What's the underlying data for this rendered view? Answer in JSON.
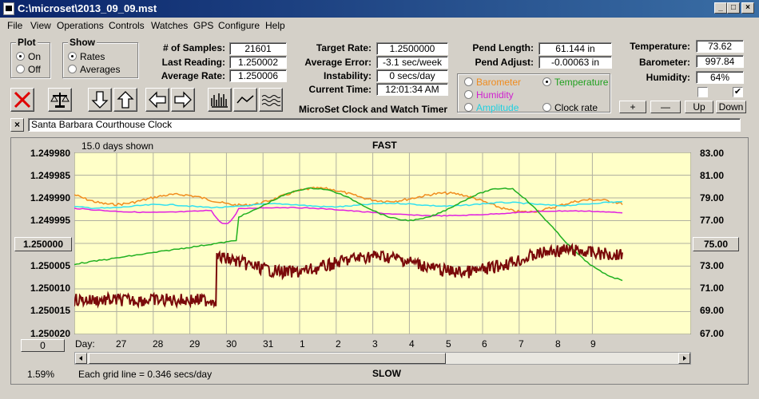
{
  "window": {
    "title": "C:\\microset\\2013_09_09.mst",
    "btn_min": "_",
    "btn_max": "□",
    "btn_close": "×"
  },
  "menu": [
    "File",
    "View",
    "Operations",
    "Controls",
    "Watches",
    "GPS",
    "Configure",
    "Help"
  ],
  "plot_group": {
    "title": "Plot",
    "on": "On",
    "off": "Off"
  },
  "show_group": {
    "title": "Show",
    "rates": "Rates",
    "averages": "Averages"
  },
  "stats": {
    "samples_label": "# of Samples:",
    "samples": "21601",
    "last_label": "Last Reading:",
    "last": "1.250002",
    "avg_label": "Average Rate:",
    "avg": "1.250006",
    "target_label": "Target Rate:",
    "target": "1.2500000",
    "error_label": "Average Error:",
    "error": "-3.1 sec/week",
    "instab_label": "Instability:",
    "instab": "0 secs/day",
    "time_label": "Current Time:",
    "time": "12:01:34 AM",
    "pend_len_label": "Pend Length:",
    "pend_len": "61.144 in",
    "pend_adj_label": "Pend Adjust:",
    "pend_adj": "-0.00063 in",
    "temp_label": "Temperature:",
    "temp": "73.62",
    "baro_label": "Barometer:",
    "baro": "997.84",
    "hum_label": "Humidity:",
    "hum": "64%"
  },
  "sensor_options": {
    "barometer": "Barometer",
    "temperature": "Temperature",
    "humidity": "Humidity",
    "amplitude": "Amplitude",
    "clock_rate": "Clock rate"
  },
  "small_buttons": {
    "plus": "+",
    "minus": "—",
    "up": "Up",
    "down": "Down"
  },
  "app_title": "MicroSet Clock and Watch Timer",
  "clock_name": "Santa Barbara Courthouse Clock",
  "clear_btn": "×",
  "colors": {
    "barometer": "#f08c1e",
    "temperature": "#20b020",
    "humidity": "#e020e0",
    "amplitude": "#20e0e0",
    "rate": "#7a0a0a",
    "plot_bg": "#ffffc8"
  },
  "chart": {
    "days_shown": "15.0 days shown",
    "fast": "FAST",
    "slow": "SLOW",
    "grid_note": "Each grid line = 0.346 secs/day",
    "percent": "1.59%",
    "day_label": "Day:",
    "ref_left": "1.250000",
    "ref_right": "75.00",
    "zero_btn": "0"
  },
  "chart_data": {
    "type": "line",
    "yleft_ticks": [
      "1.249980",
      "1.249985",
      "1.249990",
      "1.249995",
      "1.250000",
      "1.250005",
      "1.250010",
      "1.250015",
      "1.250020"
    ],
    "yright_ticks": [
      "83.00",
      "81.00",
      "79.00",
      "77.00",
      "75.00",
      "73.00",
      "71.00",
      "69.00",
      "67.00"
    ],
    "ylim_left": [
      1.24998,
      1.25002
    ],
    "ylim_right": [
      67,
      83
    ],
    "x_ticks": [
      "27",
      "28",
      "29",
      "30",
      "31",
      "1",
      "2",
      "3",
      "4",
      "5",
      "6",
      "7",
      "8",
      "9"
    ]
  }
}
